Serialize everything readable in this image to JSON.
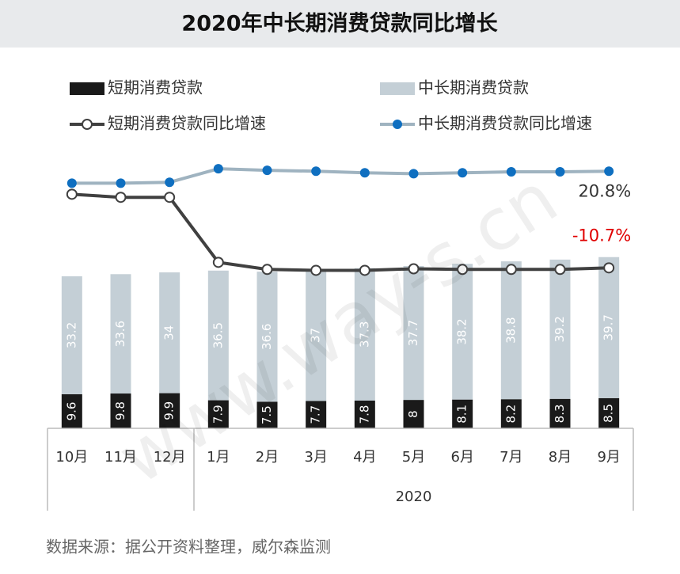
{
  "chart_data": {
    "type": "bar",
    "title": "2020年中长期消费贷款同比增长",
    "categories": [
      "10月",
      "11月",
      "12月",
      "1月",
      "2月",
      "3月",
      "4月",
      "5月",
      "6月",
      "7月",
      "8月",
      "9月"
    ],
    "category_groups": [
      {
        "label": "2020",
        "first": 3,
        "last": 11
      }
    ],
    "stacked": true,
    "ylim": [
      0,
      76
    ],
    "y2lim": [
      -63,
      25
    ],
    "series": [
      {
        "name": "短期消费贷款",
        "type": "bar",
        "color": "#1a1a1a",
        "values": [
          9.6,
          9.8,
          9.9,
          7.9,
          7.5,
          7.7,
          7.8,
          8.0,
          8.1,
          8.2,
          8.3,
          8.5
        ]
      },
      {
        "name": "中长期消费贷款",
        "type": "bar",
        "color": "#c4cfd6",
        "values": [
          33.2,
          33.6,
          34.0,
          36.5,
          36.6,
          37.0,
          37.3,
          37.7,
          38.2,
          38.8,
          39.2,
          39.7
        ]
      },
      {
        "name": "短期消费贷款同比增速",
        "type": "line",
        "axis": "y2",
        "color": "#404040",
        "marker": "open",
        "values": [
          13.3,
          12.3,
          12.3,
          -8.9,
          -11.2,
          -11.5,
          -11.5,
          -11.0,
          -11.2,
          -11.2,
          -11.2,
          -10.7
        ],
        "value_labels": [
          null,
          null,
          null,
          null,
          null,
          null,
          null,
          null,
          null,
          null,
          null,
          "-10.7%"
        ],
        "label_color": "#e00000"
      },
      {
        "name": "中长期消费贷款同比增速",
        "type": "line",
        "axis": "y2",
        "color": "#9fb3c0",
        "marker": "filled",
        "marker_color": "#0f6fc0",
        "values": [
          16.9,
          16.9,
          17.2,
          21.6,
          21.1,
          20.8,
          20.3,
          20.0,
          20.3,
          20.6,
          20.6,
          20.8
        ],
        "value_labels": [
          null,
          null,
          null,
          null,
          null,
          null,
          null,
          null,
          null,
          null,
          null,
          "20.8%"
        ],
        "label_color": "#333333"
      }
    ],
    "source": "数据来源：据公开资料整理，威尔森监测",
    "watermark": "www.way-s.cn"
  }
}
